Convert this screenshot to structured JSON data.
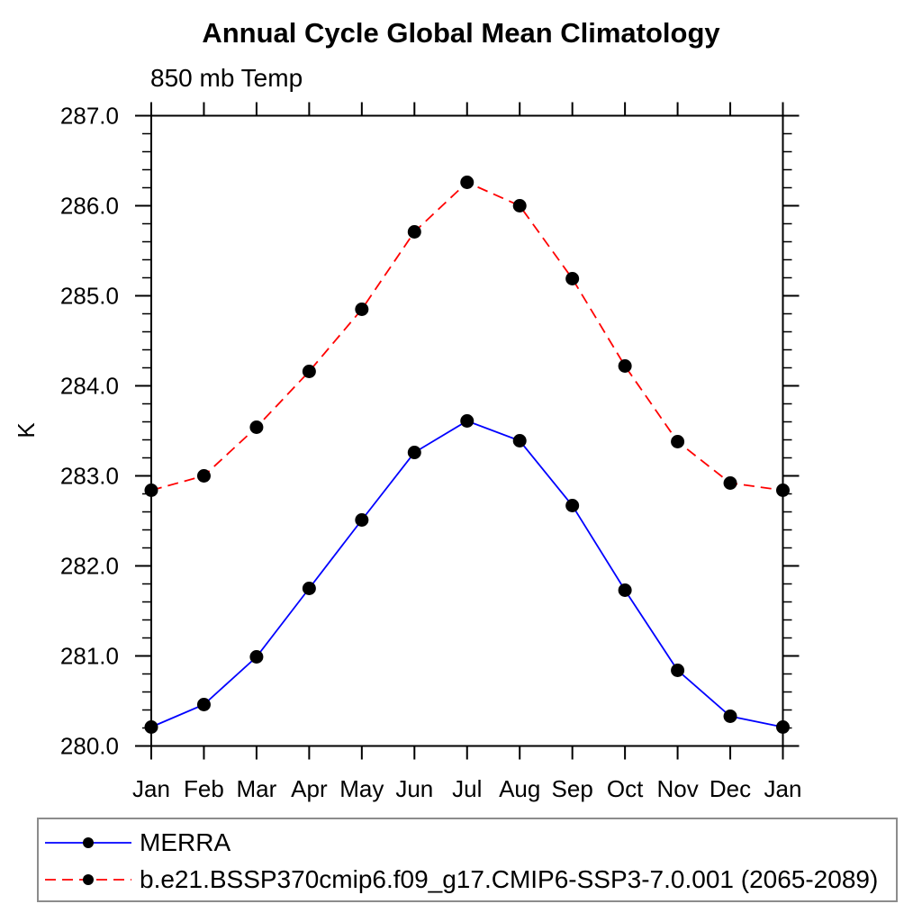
{
  "chart_data": {
    "type": "line",
    "title": "Annual Cycle Global Mean Climatology",
    "subtitle": "850 mb Temp",
    "xlabel": "",
    "ylabel": "K",
    "categories": [
      "Jan",
      "Feb",
      "Mar",
      "Apr",
      "May",
      "Jun",
      "Jul",
      "Aug",
      "Sep",
      "Oct",
      "Nov",
      "Dec",
      "Jan"
    ],
    "ylim": [
      280.0,
      287.0
    ],
    "ytick_step": 1.0,
    "yminor_step": 0.2,
    "ytick_decimals": 1,
    "grid": false,
    "legend_position": "bottom-left",
    "series": [
      {
        "name": "MERRA",
        "color": "#0000ff",
        "line_style": "solid",
        "marker": "filled-circle",
        "marker_color": "#000000",
        "values": [
          280.21,
          280.46,
          280.99,
          281.75,
          282.51,
          283.26,
          283.61,
          283.39,
          282.67,
          281.73,
          280.84,
          280.33,
          280.21
        ]
      },
      {
        "name": "b.e21.BSSP370cmip6.f09_g17.CMIP6-SSP3-7.0.001 (2065-2089)",
        "color": "#ff0000",
        "line_style": "dashed",
        "marker": "filled-circle",
        "marker_color": "#000000",
        "values": [
          282.84,
          283.0,
          283.54,
          284.16,
          284.85,
          285.71,
          286.26,
          286.0,
          285.19,
          284.22,
          283.38,
          282.92,
          282.84
        ]
      }
    ]
  },
  "colors": {
    "axis": "#000000",
    "text": "#000000",
    "background": "#ffffff",
    "legend_border": "#8c8c8c"
  }
}
